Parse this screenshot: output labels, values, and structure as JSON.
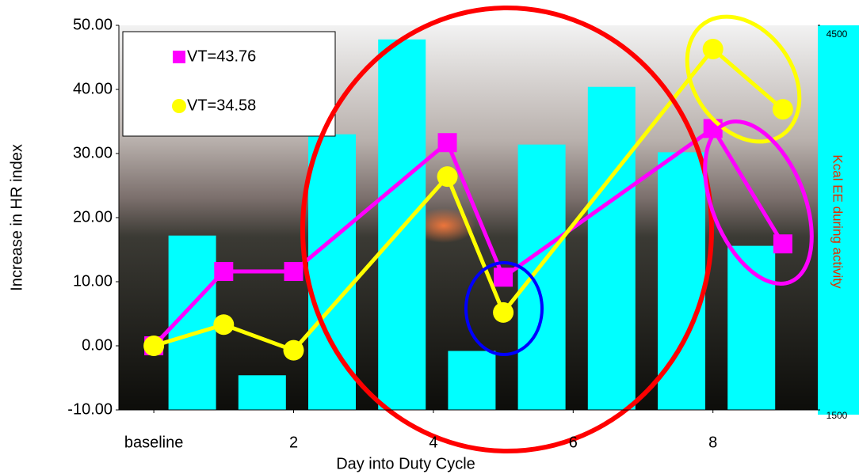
{
  "chart_data": {
    "type": "line",
    "xlabel": "Day into Duty Cycle",
    "ylabel": "Increase in HR index",
    "y2label": "Kcal EE during activity",
    "xlim": [
      -0.5,
      9.5
    ],
    "xticks": [
      {
        "value": 0,
        "label": "baseline"
      },
      2,
      4,
      6,
      8
    ],
    "ylim": [
      -10,
      50
    ],
    "yticks": [
      {
        "value": -10,
        "label": "-10.00"
      },
      {
        "value": 0,
        "label": "0.00"
      },
      {
        "value": 10,
        "label": "10.00"
      },
      {
        "value": 20,
        "label": "20.00"
      },
      {
        "value": 30,
        "label": "30.00"
      },
      {
        "value": 40,
        "label": "40.00"
      },
      {
        "value": 50,
        "label": "50.00"
      }
    ],
    "y2lim": [
      1500,
      4500
    ],
    "y2ticks": [
      1500,
      4500
    ],
    "bars": {
      "axis": "y2",
      "color": "#00ffff",
      "x": [
        0.55,
        1.55,
        2.55,
        3.55,
        4.55,
        5.55,
        6.55,
        7.55,
        8.55
      ],
      "values": [
        2860,
        1770,
        3650,
        4390,
        1960,
        3570,
        4020,
        3510,
        2780
      ]
    },
    "x": [
      0,
      1,
      2,
      4.2,
      5,
      8,
      9
    ],
    "series": [
      {
        "name": "VT=43.76",
        "color": "#ff00ff",
        "marker": "square",
        "values": [
          0,
          11.6,
          11.6,
          31.7,
          10.7,
          33.9,
          15.9
        ]
      },
      {
        "name": "VT=34.58",
        "color": "#ffff00",
        "marker": "circle",
        "values": [
          0,
          3.3,
          -0.7,
          26.4,
          5.2,
          46.3,
          36.9
        ]
      }
    ]
  }
}
